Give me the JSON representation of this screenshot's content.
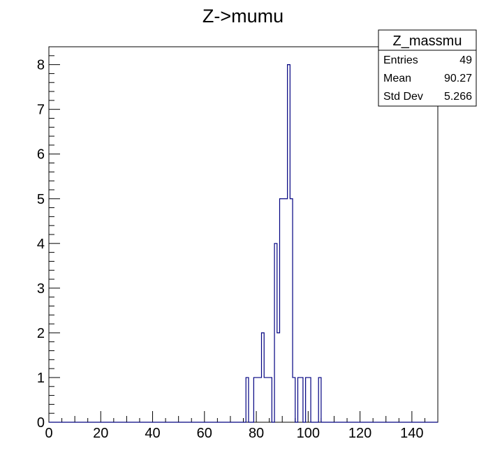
{
  "chart_data": {
    "type": "bar",
    "title": "Z->mumu",
    "xlabel": "",
    "ylabel": "",
    "xlim": [
      0,
      150
    ],
    "ylim": [
      0,
      8.4
    ],
    "bin_width": 1,
    "x_ticks": [
      0,
      20,
      40,
      60,
      80,
      100,
      120,
      140
    ],
    "y_ticks": [
      0,
      1,
      2,
      3,
      4,
      5,
      6,
      7,
      8
    ],
    "bins": [
      {
        "x": 76,
        "count": 1
      },
      {
        "x": 79,
        "count": 1
      },
      {
        "x": 80,
        "count": 1
      },
      {
        "x": 81,
        "count": 1
      },
      {
        "x": 82,
        "count": 2
      },
      {
        "x": 83,
        "count": 1
      },
      {
        "x": 84,
        "count": 1
      },
      {
        "x": 85,
        "count": 1
      },
      {
        "x": 87,
        "count": 4
      },
      {
        "x": 88,
        "count": 2
      },
      {
        "x": 89,
        "count": 5
      },
      {
        "x": 90,
        "count": 5
      },
      {
        "x": 91,
        "count": 5
      },
      {
        "x": 92,
        "count": 8
      },
      {
        "x": 93,
        "count": 5
      },
      {
        "x": 94,
        "count": 1
      },
      {
        "x": 96,
        "count": 1
      },
      {
        "x": 97,
        "count": 1
      },
      {
        "x": 99,
        "count": 1
      },
      {
        "x": 100,
        "count": 1
      },
      {
        "x": 104,
        "count": 1
      }
    ],
    "line_color": "#000080",
    "stats_box": {
      "name": "Z_massmu",
      "rows": [
        {
          "label": "Entries",
          "value": "49"
        },
        {
          "label": "Mean",
          "value": "90.27"
        },
        {
          "label": "Std Dev",
          "value": "5.266"
        }
      ]
    }
  }
}
